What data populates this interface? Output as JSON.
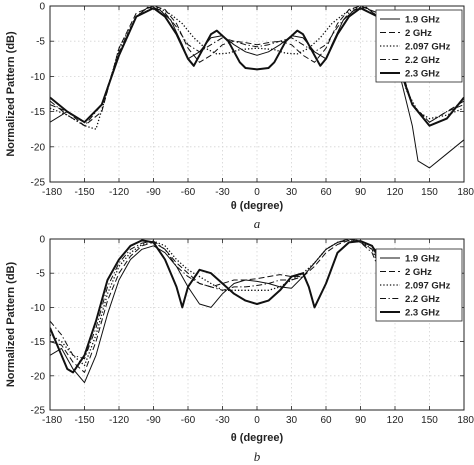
{
  "chart_data": [
    {
      "type": "line",
      "panel_label": "a",
      "xlabel": "θ (degree)",
      "ylabel": "Normalized Pattern (dB)",
      "xlim": [
        -180,
        180
      ],
      "ylim": [
        -25,
        0
      ],
      "xticks": [
        -180,
        -150,
        -120,
        -90,
        -60,
        -30,
        0,
        30,
        60,
        90,
        120,
        150,
        180
      ],
      "xtick_labels": [
        "-180",
        "-150",
        "-120",
        "-90",
        "-60",
        "-30",
        "0",
        "30",
        "60",
        "90",
        "120",
        "150",
        "180"
      ],
      "yticks": [
        0,
        -5,
        -10,
        -15,
        -20,
        -25
      ],
      "grid": true,
      "legend_position": "top-right",
      "series": [
        {
          "name": "1.9 GHz",
          "style": "solid",
          "width": 1.0,
          "x": [
            -180,
            -165,
            -150,
            -135,
            -120,
            -105,
            -95,
            -85,
            -75,
            -65,
            -60,
            -50,
            -40,
            -30,
            -20,
            -10,
            0,
            10,
            20,
            30,
            40,
            50,
            60,
            65,
            75,
            85,
            95,
            105,
            120,
            135,
            140,
            150,
            165,
            180
          ],
          "y": [
            -16.5,
            -15,
            -16.5,
            -14,
            -7,
            -1.5,
            -0.2,
            -0.5,
            -2,
            -5.5,
            -7.5,
            -6.5,
            -4.5,
            -4.2,
            -5.5,
            -6.5,
            -7,
            -6.5,
            -5.5,
            -4.2,
            -4.5,
            -6.5,
            -7.5,
            -5.5,
            -2,
            -0.5,
            -0.2,
            -1.5,
            -7,
            -17,
            -22,
            -23,
            -21,
            -19
          ]
        },
        {
          "name": "2 GHz",
          "style": "dash",
          "width": 1.0,
          "x": [
            -180,
            -165,
            -150,
            -135,
            -120,
            -105,
            -90,
            -80,
            -70,
            -60,
            -50,
            -40,
            -30,
            -20,
            -10,
            0,
            10,
            20,
            30,
            40,
            50,
            60,
            70,
            80,
            90,
            105,
            120,
            135,
            150,
            165,
            180
          ],
          "y": [
            -14,
            -15,
            -17,
            -15,
            -6,
            -1,
            0,
            -0.5,
            -2.5,
            -6,
            -8,
            -7,
            -5.5,
            -5,
            -5.2,
            -5.5,
            -5.2,
            -5,
            -5.5,
            -7,
            -8,
            -6,
            -2.5,
            -0.5,
            0,
            -1,
            -6,
            -14,
            -16.5,
            -15,
            -14
          ]
        },
        {
          "name": "2.097 GHz",
          "style": "dot",
          "width": 1.3,
          "x": [
            -180,
            -165,
            -150,
            -140,
            -130,
            -120,
            -105,
            -95,
            -85,
            -75,
            -65,
            -55,
            -45,
            -35,
            -25,
            -15,
            0,
            15,
            25,
            35,
            45,
            55,
            65,
            75,
            85,
            95,
            105,
            120,
            130,
            140,
            150,
            165,
            180
          ],
          "y": [
            -14.5,
            -15.5,
            -17,
            -17.5,
            -12,
            -6,
            -1.5,
            -0.2,
            -0.3,
            -1.2,
            -2.5,
            -4.5,
            -6,
            -6.8,
            -6.7,
            -6.2,
            -6,
            -6.2,
            -6.7,
            -6.8,
            -6,
            -4.5,
            -2.5,
            -1.2,
            -0.3,
            -0.2,
            -1.5,
            -6,
            -12,
            -15,
            -16,
            -15.5,
            -14.5
          ]
        },
        {
          "name": "2.2 GHz",
          "style": "dashdot",
          "width": 1.0,
          "x": [
            -180,
            -165,
            -150,
            -135,
            -120,
            -105,
            -90,
            -80,
            -70,
            -60,
            -50,
            -40,
            -30,
            -20,
            -10,
            0,
            10,
            20,
            30,
            40,
            50,
            60,
            70,
            80,
            90,
            105,
            120,
            135,
            150,
            165,
            180
          ],
          "y": [
            -13.5,
            -15.5,
            -17,
            -14,
            -6.5,
            -1.5,
            -0.2,
            -1,
            -3,
            -5.5,
            -6.5,
            -5.5,
            -4.5,
            -5,
            -5.5,
            -5.8,
            -5.5,
            -5,
            -4.5,
            -5.5,
            -6.5,
            -5.5,
            -3,
            -1,
            -0.2,
            -1.5,
            -6.5,
            -14,
            -16.5,
            -15,
            -13.5
          ]
        },
        {
          "name": "2.3 GHz",
          "style": "solid",
          "width": 2.0,
          "x": [
            -180,
            -165,
            -150,
            -135,
            -120,
            -105,
            -90,
            -80,
            -70,
            -60,
            -55,
            -50,
            -40,
            -35,
            -25,
            -15,
            -10,
            0,
            10,
            15,
            25,
            35,
            40,
            50,
            55,
            60,
            70,
            80,
            90,
            105,
            120,
            135,
            150,
            165,
            180
          ],
          "y": [
            -13,
            -15,
            -16.5,
            -14,
            -7,
            -1.5,
            -0.3,
            -1.5,
            -4,
            -7.5,
            -8.5,
            -7,
            -4,
            -3.5,
            -5,
            -8,
            -8.8,
            -9,
            -8.8,
            -8,
            -5,
            -3.5,
            -4,
            -7,
            -8.5,
            -7.5,
            -4,
            -1.5,
            -0.3,
            -1.5,
            -7,
            -14,
            -17,
            -16,
            -13
          ]
        }
      ]
    },
    {
      "type": "line",
      "panel_label": "b",
      "xlabel": "θ (degree)",
      "ylabel": "Normalized Pattern (dB)",
      "xlim": [
        -180,
        180
      ],
      "ylim": [
        -25,
        0
      ],
      "xticks": [
        -180,
        -150,
        -120,
        -90,
        -60,
        -30,
        0,
        30,
        60,
        90,
        120,
        150,
        180
      ],
      "xtick_labels": [
        "-180",
        "-150",
        "-120",
        "-90",
        "-60",
        "-30",
        "0",
        "30",
        "60",
        "90",
        "120",
        "150",
        "180"
      ],
      "yticks": [
        0,
        -5,
        -10,
        -15,
        -20,
        -25
      ],
      "grid": true,
      "legend_position": "center-right",
      "series": [
        {
          "name": "1.9 GHz",
          "style": "solid",
          "width": 1.0,
          "x": [
            -180,
            -170,
            -160,
            -150,
            -140,
            -130,
            -120,
            -110,
            -100,
            -90,
            -80,
            -70,
            -60,
            -50,
            -40,
            -30,
            -20,
            -10,
            0,
            10,
            20,
            30,
            40,
            50,
            60,
            70,
            80,
            90,
            100,
            105
          ],
          "y": [
            -17,
            -16,
            -19,
            -21,
            -17,
            -11,
            -6,
            -3,
            -1.5,
            -1,
            -2,
            -4,
            -7,
            -9.5,
            -10,
            -8,
            -6.5,
            -6,
            -6.2,
            -6.5,
            -7,
            -7.2,
            -5.5,
            -3.5,
            -1.5,
            -0.5,
            0,
            -0.3,
            -1,
            -2
          ]
        },
        {
          "name": "2 GHz",
          "style": "dash",
          "width": 1.0,
          "x": [
            -180,
            -170,
            -160,
            -150,
            -140,
            -130,
            -120,
            -110,
            -100,
            -90,
            -80,
            -70,
            -60,
            -50,
            -40,
            -30,
            -20,
            -10,
            0,
            10,
            20,
            30,
            40,
            50,
            60,
            70,
            80,
            90,
            100,
            105
          ],
          "y": [
            -15,
            -15.5,
            -18,
            -19.5,
            -15,
            -9,
            -5,
            -2.5,
            -1,
            -0.5,
            -1.5,
            -3.5,
            -5,
            -6.5,
            -7,
            -6.5,
            -6,
            -6,
            -5.8,
            -5.5,
            -5.2,
            -5.5,
            -5.5,
            -4,
            -2,
            -0.8,
            -0.2,
            -0.5,
            -1.5,
            -3
          ]
        },
        {
          "name": "2.097 GHz",
          "style": "dot",
          "width": 1.3,
          "x": [
            -180,
            -170,
            -160,
            -150,
            -140,
            -130,
            -120,
            -110,
            -100,
            -90,
            -80,
            -70,
            -60,
            -50,
            -40,
            -30,
            -20,
            -10,
            0,
            10,
            20,
            30,
            40,
            50,
            60,
            70,
            80,
            90,
            100,
            105
          ],
          "y": [
            -14,
            -15,
            -17,
            -18.5,
            -14,
            -8,
            -4,
            -2,
            -0.8,
            -0.3,
            -1,
            -3,
            -4.5,
            -5.5,
            -6.5,
            -7.5,
            -7.5,
            -7.5,
            -7.5,
            -7.5,
            -7,
            -6,
            -5,
            -3.5,
            -1.5,
            -0.5,
            0,
            -0.3,
            -1.5,
            -3.5
          ]
        },
        {
          "name": "2.2 GHz",
          "style": "dashdot",
          "width": 1.0,
          "x": [
            -180,
            -170,
            -160,
            -150,
            -140,
            -130,
            -120,
            -110,
            -100,
            -90,
            -80,
            -70,
            -60,
            -50,
            -40,
            -30,
            -20,
            -10,
            0,
            10,
            20,
            30,
            40,
            50,
            60,
            70,
            80,
            90,
            100,
            105
          ],
          "y": [
            -12,
            -14,
            -17,
            -17.5,
            -13,
            -7,
            -3.5,
            -1.5,
            -0.6,
            -0.3,
            -1.5,
            -4,
            -5.5,
            -6.5,
            -7,
            -7.5,
            -7,
            -7,
            -6.8,
            -6.5,
            -6,
            -6,
            -5.5,
            -3.5,
            -1.5,
            -0.5,
            -0.2,
            -0.5,
            -2,
            -4
          ]
        },
        {
          "name": "2.3 GHz",
          "style": "solid",
          "width": 2.0,
          "x": [
            -180,
            -170,
            -165,
            -160,
            -150,
            -140,
            -130,
            -120,
            -110,
            -100,
            -90,
            -80,
            -70,
            -65,
            -60,
            -50,
            -40,
            -30,
            -20,
            -10,
            0,
            10,
            20,
            30,
            40,
            45,
            50,
            60,
            70,
            80,
            90,
            100,
            105
          ],
          "y": [
            -13,
            -17,
            -19,
            -19.5,
            -17,
            -12,
            -6,
            -3,
            -1,
            -0.2,
            -0.5,
            -3,
            -7,
            -10,
            -7,
            -4.5,
            -5,
            -6.5,
            -8,
            -9,
            -9.5,
            -9,
            -7.5,
            -5.5,
            -5,
            -7,
            -10,
            -6.5,
            -2,
            -0.5,
            -0.3,
            -1,
            -2.5
          ]
        }
      ]
    }
  ]
}
